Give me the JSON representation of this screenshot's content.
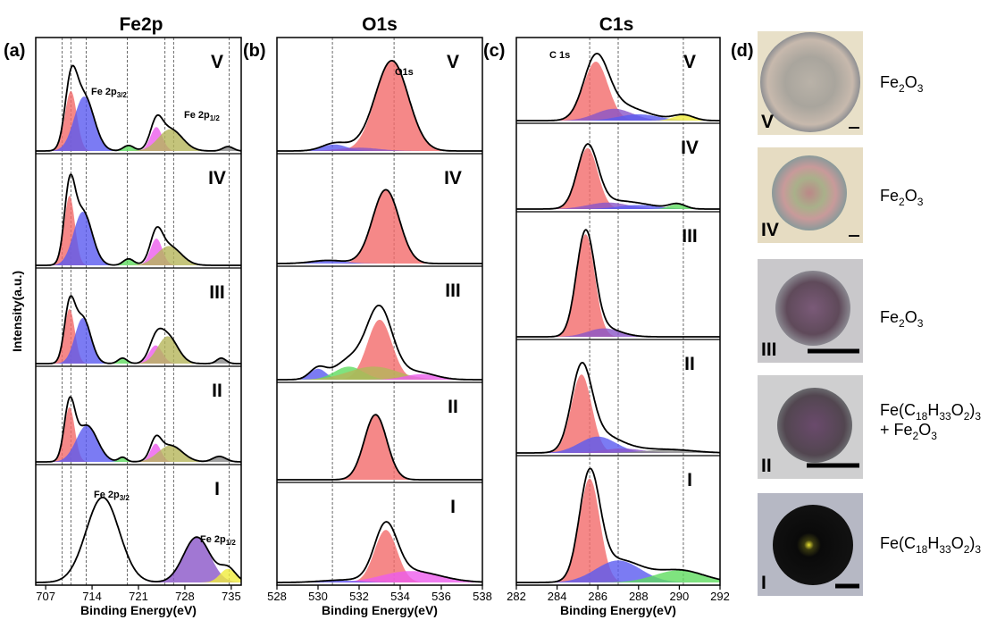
{
  "chart_data": [
    {
      "type": "xps",
      "title": "Fe2p",
      "panel_label": "(a)",
      "xlabel": "Binding Energy(eV)",
      "ylabel": "Intensity(a.u.)",
      "xlim": [
        705.5,
        736.5
      ],
      "xticks": [
        707,
        714,
        721,
        728,
        735
      ],
      "reference_lines": [
        709.5,
        710.8,
        713.1,
        719.3,
        725,
        726.3,
        734.7
      ],
      "annotations": [
        {
          "text": "Fe 2p",
          "sub": "3/2"
        },
        {
          "text": "Fe 2p",
          "sub": "1/2"
        },
        {
          "text": "Fe 2p",
          "sub": "3/2"
        },
        {
          "text": "Fe 2p",
          "sub": "1/2"
        }
      ],
      "rows": [
        {
          "name": "V",
          "peaks": [
            {
              "center": 710.8,
              "height": 0.55,
              "width": 0.9,
              "color": "#f26a6a"
            },
            {
              "center": 712.8,
              "height": 0.5,
              "width": 1.5,
              "color": "#5a5af0"
            },
            {
              "center": 719.5,
              "height": 0.05,
              "width": 0.8,
              "color": "#5fdc5f"
            },
            {
              "center": 723.7,
              "height": 0.22,
              "width": 0.9,
              "color": "#ec5cec"
            },
            {
              "center": 725.8,
              "height": 0.2,
              "width": 1.8,
              "color": "#b5b55a"
            },
            {
              "center": 734.5,
              "height": 0.04,
              "width": 0.8,
              "color": "#888888"
            }
          ]
        },
        {
          "name": "IV",
          "peaks": [
            {
              "center": 710.6,
              "height": 0.65,
              "width": 0.8,
              "color": "#f26a6a"
            },
            {
              "center": 712.6,
              "height": 0.5,
              "width": 1.4,
              "color": "#5a5af0"
            },
            {
              "center": 719.5,
              "height": 0.06,
              "width": 0.8,
              "color": "#5fdc5f"
            },
            {
              "center": 723.7,
              "height": 0.25,
              "width": 0.9,
              "color": "#ec5cec"
            },
            {
              "center": 725.6,
              "height": 0.18,
              "width": 1.8,
              "color": "#b5b55a"
            }
          ]
        },
        {
          "name": "III",
          "peaks": [
            {
              "center": 710.6,
              "height": 0.6,
              "width": 0.8,
              "color": "#f26a6a"
            },
            {
              "center": 712.6,
              "height": 0.5,
              "width": 1.2,
              "color": "#5a5af0"
            },
            {
              "center": 718.6,
              "height": 0.06,
              "width": 0.7,
              "color": "#5fdc5f"
            },
            {
              "center": 723.6,
              "height": 0.2,
              "width": 1.0,
              "color": "#ec5cec"
            },
            {
              "center": 725.4,
              "height": 0.3,
              "width": 1.5,
              "color": "#b5b55a"
            },
            {
              "center": 733.5,
              "height": 0.06,
              "width": 0.7,
              "color": "#888888"
            }
          ]
        },
        {
          "name": "II",
          "peaks": [
            {
              "center": 710.6,
              "height": 0.6,
              "width": 0.8,
              "color": "#f26a6a"
            },
            {
              "center": 713.2,
              "height": 0.4,
              "width": 1.6,
              "color": "#5a5af0"
            },
            {
              "center": 718.6,
              "height": 0.05,
              "width": 0.6,
              "color": "#5fdc5f"
            },
            {
              "center": 723.6,
              "height": 0.2,
              "width": 0.8,
              "color": "#ec5cec"
            },
            {
              "center": 725.8,
              "height": 0.18,
              "width": 1.8,
              "color": "#b5b55a"
            },
            {
              "center": 733.2,
              "height": 0.06,
              "width": 1.0,
              "color": "#888888"
            }
          ]
        },
        {
          "name": "I",
          "peaks": [
            {
              "center": 715.6,
              "height": 0.75,
              "width": 2.5,
              "color": null
            },
            {
              "center": 729.8,
              "height": 0.4,
              "width": 2.0,
              "color": "#8a55c8"
            },
            {
              "center": 734.5,
              "height": 0.12,
              "width": 1.2,
              "color": "#f0ec3c"
            }
          ]
        }
      ]
    },
    {
      "type": "xps",
      "title": "O1s",
      "panel_label": "(b)",
      "xlabel": "Binding Energy(eV)",
      "xlim": [
        528,
        538
      ],
      "xticks": [
        528,
        530,
        532,
        534,
        536,
        538
      ],
      "reference_lines": [
        530.7,
        533.7
      ],
      "annotations": [
        {
          "text": "O1s",
          "sub": null
        }
      ],
      "rows": [
        {
          "name": "V",
          "peaks": [
            {
              "center": 533.6,
              "height": 0.82,
              "width": 0.8,
              "color": "#f26a6a"
            },
            {
              "center": 530.8,
              "height": 0.06,
              "width": 0.6,
              "color": "#5a5af0"
            },
            {
              "center": 532,
              "height": 0.03,
              "width": 1,
              "color": "#8a55c8"
            }
          ]
        },
        {
          "name": "IV",
          "peaks": [
            {
              "center": 533.3,
              "height": 0.7,
              "width": 0.65,
              "color": "#f26a6a"
            },
            {
              "center": 530.5,
              "height": 0.03,
              "width": 0.8,
              "color": "#5a5af0"
            }
          ]
        },
        {
          "name": "III",
          "peaks": [
            {
              "center": 533,
              "height": 0.55,
              "width": 0.6,
              "color": "#f26a6a"
            },
            {
              "center": 530,
              "height": 0.1,
              "width": 0.4,
              "color": "#5a5af0"
            },
            {
              "center": 531.5,
              "height": 0.12,
              "width": 0.7,
              "color": "#5fdc5f"
            },
            {
              "center": 532.7,
              "height": 0.12,
              "width": 1.2,
              "color": "#b5b55a"
            },
            {
              "center": 535,
              "height": 0.05,
              "width": 0.8,
              "color": "#ec5cec"
            }
          ]
        },
        {
          "name": "II",
          "peaks": [
            {
              "center": 532.8,
              "height": 0.7,
              "width": 0.55,
              "color": "#f26a6a"
            }
          ]
        },
        {
          "name": "I",
          "peaks": [
            {
              "center": 533.3,
              "height": 0.55,
              "width": 0.55,
              "color": "#f26a6a"
            },
            {
              "center": 534.5,
              "height": 0.12,
              "width": 1.4,
              "color": "#ec5cec"
            },
            {
              "center": 531,
              "height": 0.02,
              "width": 1,
              "color": "#5a5af0"
            }
          ]
        }
      ]
    },
    {
      "type": "xps",
      "title": "C1s",
      "panel_label": "(c)",
      "xlabel": "Binding Energy(eV)",
      "xlim": [
        282,
        292
      ],
      "xticks": [
        282,
        284,
        286,
        288,
        290,
        292
      ],
      "reference_lines": [
        285.6,
        287,
        290.2
      ],
      "annotations": [
        {
          "text": "C 1s",
          "sub": null
        }
      ],
      "rows": [
        {
          "name": "V",
          "peaks": [
            {
              "center": 285.9,
              "height": 0.75,
              "width": 0.6,
              "color": "#f26a6a"
            },
            {
              "center": 286.8,
              "height": 0.15,
              "width": 0.9,
              "color": "#8a55c8"
            },
            {
              "center": 288,
              "height": 0.08,
              "width": 1,
              "color": "#5a5af0"
            },
            {
              "center": 290.2,
              "height": 0.07,
              "width": 0.5,
              "color": "#f0ec3c"
            }
          ]
        },
        {
          "name": "IV",
          "peaks": [
            {
              "center": 285.5,
              "height": 0.75,
              "width": 0.5,
              "color": "#f26a6a"
            },
            {
              "center": 286.5,
              "height": 0.08,
              "width": 1.0,
              "color": "#8a55c8"
            },
            {
              "center": 288,
              "height": 0.05,
              "width": 1,
              "color": "#5a5af0"
            },
            {
              "center": 289.9,
              "height": 0.06,
              "width": 0.4,
              "color": "#5fdc5f"
            }
          ]
        },
        {
          "name": "III",
          "peaks": [
            {
              "center": 285.4,
              "height": 0.85,
              "width": 0.45,
              "color": "#f26a6a"
            },
            {
              "center": 286.3,
              "height": 0.07,
              "width": 0.8,
              "color": "#8a55c8"
            }
          ]
        },
        {
          "name": "II",
          "peaks": [
            {
              "center": 285.2,
              "height": 0.72,
              "width": 0.5,
              "color": "#f26a6a"
            },
            {
              "center": 286,
              "height": 0.15,
              "width": 0.9,
              "color": "#5a5af0"
            },
            {
              "center": 287.2,
              "height": 0.04,
              "width": 1,
              "color": "#8a55c8"
            },
            {
              "center": 289.5,
              "height": 0.03,
              "width": 1.2,
              "color": "#888888"
            }
          ]
        },
        {
          "name": "I",
          "peaks": [
            {
              "center": 285.6,
              "height": 0.85,
              "width": 0.5,
              "color": "#f26a6a"
            },
            {
              "center": 287,
              "height": 0.18,
              "width": 1.1,
              "color": "#5a5af0"
            },
            {
              "center": 290,
              "height": 0.1,
              "width": 1.2,
              "color": "#5fdc5f"
            }
          ]
        }
      ]
    }
  ],
  "images": {
    "panel_label": "(d)",
    "items": [
      {
        "label": "V",
        "formula": [
          [
            {
              "t": "Fe"
            },
            {
              "t": "2",
              "sub": true
            },
            {
              "t": "O"
            },
            {
              "t": "3",
              "sub": true
            }
          ]
        ]
      },
      {
        "label": "IV",
        "formula": [
          [
            {
              "t": "Fe"
            },
            {
              "t": "2",
              "sub": true
            },
            {
              "t": "O"
            },
            {
              "t": "3",
              "sub": true
            }
          ]
        ]
      },
      {
        "label": "III",
        "formula": [
          [
            {
              "t": "Fe"
            },
            {
              "t": "2",
              "sub": true
            },
            {
              "t": "O"
            },
            {
              "t": "3",
              "sub": true
            }
          ]
        ]
      },
      {
        "label": "II",
        "formula": [
          [
            {
              "t": "Fe(C"
            },
            {
              "t": "18",
              "sub": true
            },
            {
              "t": "H"
            },
            {
              "t": "33",
              "sub": true
            },
            {
              "t": "O"
            },
            {
              "t": "2",
              "sub": true
            },
            {
              "t": ")"
            },
            {
              "t": "3",
              "sub": true
            }
          ],
          [
            {
              "t": "+ Fe"
            },
            {
              "t": "2",
              "sub": true
            },
            {
              "t": "O"
            },
            {
              "t": "3",
              "sub": true
            }
          ]
        ]
      },
      {
        "label": "I",
        "formula": [
          [
            {
              "t": "Fe(C"
            },
            {
              "t": "18",
              "sub": true
            },
            {
              "t": "H"
            },
            {
              "t": "33",
              "sub": true
            },
            {
              "t": "O"
            },
            {
              "t": "2",
              "sub": true
            },
            {
              "t": ")"
            },
            {
              "t": "3",
              "sub": true
            }
          ]
        ]
      }
    ]
  }
}
